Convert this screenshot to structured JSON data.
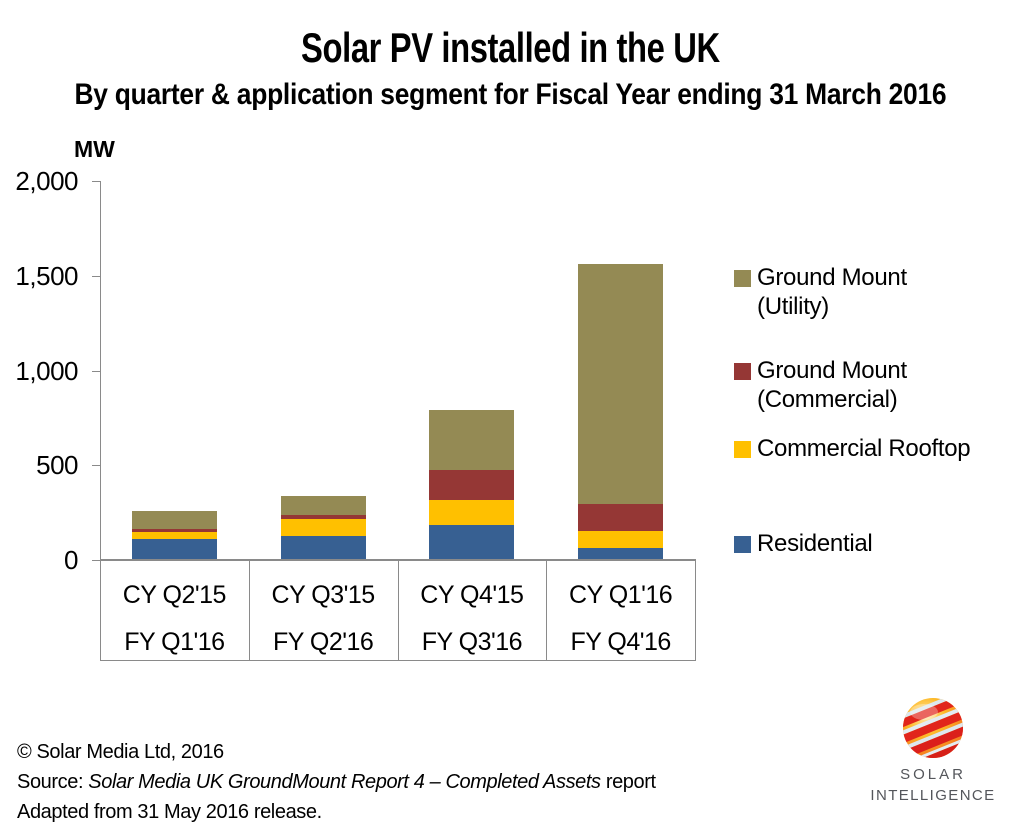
{
  "header": {
    "title": "Solar PV installed in the UK",
    "subtitle": "By quarter & application segment for Fiscal Year ending 31 March 2016"
  },
  "chart_data": {
    "type": "bar",
    "stacked": true,
    "title": "Solar PV installed in the UK",
    "subtitle": "By quarter & application segment for Fiscal Year ending 31 March 2016",
    "y_unit_label": "MW",
    "ylabel": "MW",
    "xlabel": "",
    "ylim": [
      0,
      2000
    ],
    "y_ticks": [
      0,
      500,
      1000,
      1500,
      2000
    ],
    "y_tick_labels": [
      "0",
      "500",
      "1,000",
      "1,500",
      "2,000"
    ],
    "grid": false,
    "axis_color": "#8A8A8A",
    "categories": [
      {
        "cy": "CY Q2'15",
        "fy": "FY Q1'16"
      },
      {
        "cy": "CY Q3'15",
        "fy": "FY Q2'16"
      },
      {
        "cy": "CY Q4'15",
        "fy": "FY Q3'16"
      },
      {
        "cy": "CY Q1'16",
        "fy": "FY Q4'16"
      }
    ],
    "series": [
      {
        "name": "Residential",
        "color": "#376092",
        "values": [
          110,
          125,
          185,
          65
        ]
      },
      {
        "name": "Commercial Rooftop",
        "color": "#FFC000",
        "values": [
          40,
          90,
          130,
          90
        ]
      },
      {
        "name": "Ground Mount (Commercial)",
        "color": "#953735",
        "values": [
          15,
          20,
          160,
          140
        ]
      },
      {
        "name": "Ground Mount (Utility)",
        "color": "#948A54",
        "values": [
          95,
          105,
          315,
          1265
        ]
      }
    ],
    "legend": {
      "position": "right",
      "items": [
        {
          "lines": [
            "Ground Mount",
            "(Utility)"
          ],
          "color": "#948A54"
        },
        {
          "lines": [
            "Ground Mount",
            "(Commercial)"
          ],
          "color": "#953735"
        },
        {
          "lines": [
            "Commercial Rooftop"
          ],
          "color": "#FFC000"
        },
        {
          "lines": [
            "Residential"
          ],
          "color": "#376092"
        }
      ]
    }
  },
  "footer": {
    "copyright": "© Solar Media Ltd, 2016",
    "source_prefix": "Source: ",
    "source_italic": "Solar Media UK GroundMount Report 4 – Completed Assets",
    "source_suffix": " report",
    "adapted": "Adapted from 31 May 2016 release."
  },
  "logo": {
    "line1": "SOLAR",
    "line2": "INTELLIGENCE"
  }
}
